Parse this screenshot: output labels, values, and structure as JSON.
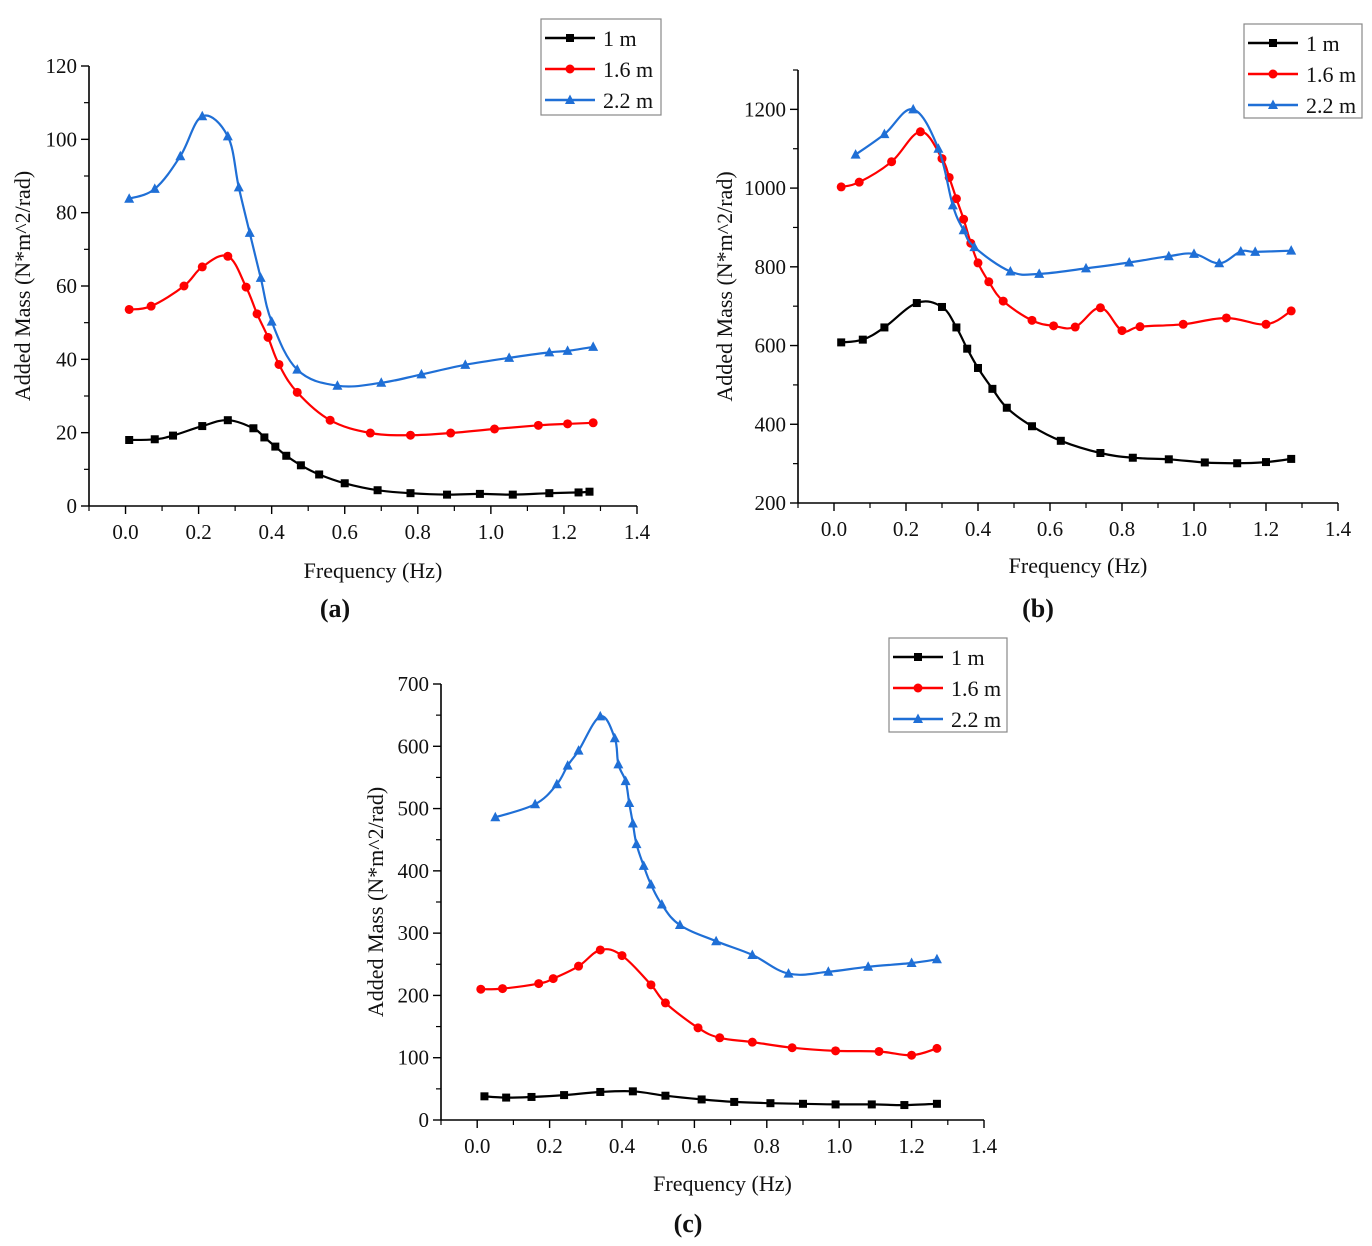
{
  "figure": {
    "panels": [
      "(a)",
      "(b)",
      "(c)"
    ]
  },
  "chart_data": [
    {
      "type": "line",
      "panel_label": "a",
      "title": "",
      "xlabel": "Frequency (Hz)",
      "ylabel": "Added Mass (N*m^2/rad)",
      "xlim": [
        -0.1,
        1.4
      ],
      "ylim": [
        0,
        120
      ],
      "xticks": [
        "0.0",
        "0.2",
        "0.4",
        "0.6",
        "0.8",
        "1.0",
        "1.2",
        "1.4"
      ],
      "xtick_values": [
        0.0,
        0.2,
        0.4,
        0.6,
        0.8,
        1.0,
        1.2,
        1.4
      ],
      "yticks": [
        "0",
        "20",
        "40",
        "60",
        "80",
        "100",
        "120"
      ],
      "ytick_values": [
        0,
        20,
        40,
        60,
        80,
        100,
        120
      ],
      "grid": false,
      "legend_position": "top-right",
      "series": [
        {
          "name": "1 m",
          "color": "#000000",
          "marker": "square",
          "x": [
            0.01,
            0.08,
            0.13,
            0.21,
            0.28,
            0.35,
            0.38,
            0.41,
            0.44,
            0.48,
            0.53,
            0.6,
            0.69,
            0.78,
            0.88,
            0.97,
            1.06,
            1.16,
            1.24,
            1.27
          ],
          "y": [
            18,
            18.2,
            19.2,
            21.8,
            23.4,
            21.2,
            18.7,
            16.2,
            13.7,
            11.1,
            8.6,
            6.2,
            4.3,
            3.5,
            3.1,
            3.3,
            3.1,
            3.5,
            3.7,
            3.9
          ]
        },
        {
          "name": "1.6 m",
          "color": "#ff0000",
          "marker": "circle",
          "x": [
            0.01,
            0.07,
            0.16,
            0.21,
            0.28,
            0.33,
            0.36,
            0.39,
            0.42,
            0.47,
            0.56,
            0.67,
            0.78,
            0.89,
            1.01,
            1.13,
            1.21,
            1.28
          ],
          "y": [
            53.6,
            54.5,
            60,
            65.2,
            68.1,
            59.7,
            52.4,
            46,
            38.6,
            31,
            23.4,
            19.9,
            19.3,
            19.9,
            21,
            22,
            22.4,
            22.7
          ]
        },
        {
          "name": "2.2 m",
          "color": "#1f6fd6",
          "marker": "triangle",
          "x": [
            0.01,
            0.08,
            0.15,
            0.21,
            0.28,
            0.31,
            0.34,
            0.37,
            0.4,
            0.47,
            0.58,
            0.7,
            0.81,
            0.93,
            1.05,
            1.16,
            1.21,
            1.28
          ],
          "y": [
            83.8,
            86.5,
            95.4,
            106.3,
            100.8,
            86.9,
            74.5,
            62.2,
            50.3,
            37.2,
            32.8,
            33.6,
            35.9,
            38.5,
            40.4,
            41.9,
            42.3,
            43.4
          ]
        }
      ]
    },
    {
      "type": "line",
      "panel_label": "b",
      "title": "",
      "xlabel": "Frequency (Hz)",
      "ylabel": "Added Mass (N*m^2/rad)",
      "xlim": [
        -0.1,
        1.4
      ],
      "ylim": [
        200,
        1300
      ],
      "xticks": [
        "0.0",
        "0.2",
        "0.4",
        "0.6",
        "0.8",
        "1.0",
        "1.2",
        "1.4"
      ],
      "xtick_values": [
        0.0,
        0.2,
        0.4,
        0.6,
        0.8,
        1.0,
        1.2,
        1.4
      ],
      "yticks": [
        "200",
        "400",
        "600",
        "800",
        "1000",
        "1200"
      ],
      "ytick_values": [
        200,
        400,
        600,
        800,
        1000,
        1200
      ],
      "grid": false,
      "legend_position": "top-right",
      "series": [
        {
          "name": "1 m",
          "color": "#000000",
          "marker": "square",
          "x": [
            0.02,
            0.08,
            0.14,
            0.23,
            0.3,
            0.34,
            0.37,
            0.4,
            0.44,
            0.48,
            0.55,
            0.63,
            0.74,
            0.83,
            0.93,
            1.03,
            1.12,
            1.2,
            1.27
          ],
          "y": [
            608,
            615,
            646,
            708,
            698,
            646,
            592,
            543,
            490,
            442,
            395,
            358,
            327,
            315,
            311,
            303,
            301,
            304,
            312
          ]
        },
        {
          "name": "1.6 m",
          "color": "#ff0000",
          "marker": "circle",
          "x": [
            0.02,
            0.07,
            0.16,
            0.24,
            0.3,
            0.32,
            0.34,
            0.36,
            0.38,
            0.4,
            0.43,
            0.47,
            0.55,
            0.61,
            0.67,
            0.74,
            0.8,
            0.85,
            0.97,
            1.09,
            1.2,
            1.27
          ],
          "y": [
            1003,
            1015,
            1067,
            1143,
            1075,
            1027,
            973,
            921,
            860,
            810,
            762,
            713,
            664,
            650,
            647,
            696,
            638,
            648,
            654,
            670,
            654,
            688
          ]
        },
        {
          "name": "2.2 m",
          "color": "#1f6fd6",
          "marker": "triangle",
          "x": [
            0.06,
            0.14,
            0.22,
            0.29,
            0.33,
            0.36,
            0.39,
            0.49,
            0.57,
            0.7,
            0.82,
            0.93,
            1.0,
            1.07,
            1.13,
            1.17,
            1.27
          ],
          "y": [
            1085,
            1137,
            1200,
            1100,
            956,
            893,
            850,
            788,
            782,
            796,
            811,
            827,
            833,
            809,
            839,
            838,
            841
          ]
        }
      ]
    },
    {
      "type": "line",
      "panel_label": "c",
      "title": "",
      "xlabel": "Frequency (Hz)",
      "ylabel": "Added Mass (N*m^2/rad)",
      "xlim": [
        -0.1,
        1.4
      ],
      "ylim": [
        0,
        700
      ],
      "xticks": [
        "0.0",
        "0.2",
        "0.4",
        "0.6",
        "0.8",
        "1.0",
        "1.2",
        "1.4"
      ],
      "xtick_values": [
        0.0,
        0.2,
        0.4,
        0.6,
        0.8,
        1.0,
        1.2,
        1.4
      ],
      "yticks": [
        "0",
        "100",
        "200",
        "300",
        "400",
        "500",
        "600",
        "700"
      ],
      "ytick_values": [
        0,
        100,
        200,
        300,
        400,
        500,
        600,
        700
      ],
      "grid": false,
      "legend_position": "top-right",
      "series": [
        {
          "name": "1 m",
          "color": "#000000",
          "marker": "square",
          "x": [
            0.02,
            0.08,
            0.15,
            0.24,
            0.34,
            0.43,
            0.52,
            0.62,
            0.71,
            0.81,
            0.9,
            0.99,
            1.09,
            1.18,
            1.27
          ],
          "y": [
            38,
            36,
            37,
            40,
            45,
            46,
            39,
            33,
            29,
            27,
            26,
            25,
            25,
            24,
            26
          ]
        },
        {
          "name": "1.6 m",
          "color": "#ff0000",
          "marker": "circle",
          "x": [
            0.01,
            0.07,
            0.17,
            0.21,
            0.28,
            0.34,
            0.4,
            0.48,
            0.52,
            0.61,
            0.67,
            0.76,
            0.87,
            0.99,
            1.11,
            1.2,
            1.27
          ],
          "y": [
            210,
            211,
            219,
            227,
            247,
            273,
            264,
            217,
            188,
            148,
            132,
            125,
            116,
            111,
            110,
            104,
            115
          ]
        },
        {
          "name": "2.2 m",
          "color": "#1f6fd6",
          "marker": "triangle",
          "x": [
            0.05,
            0.16,
            0.22,
            0.25,
            0.28,
            0.34,
            0.38,
            0.39,
            0.41,
            0.42,
            0.43,
            0.44,
            0.46,
            0.48,
            0.51,
            0.56,
            0.66,
            0.76,
            0.86,
            0.97,
            1.08,
            1.2,
            1.27
          ],
          "y": [
            486,
            507,
            539,
            569,
            593,
            648,
            613,
            571,
            544,
            509,
            476,
            443,
            408,
            378,
            346,
            313,
            287,
            265,
            235,
            238,
            246,
            252,
            258
          ]
        }
      ]
    }
  ]
}
